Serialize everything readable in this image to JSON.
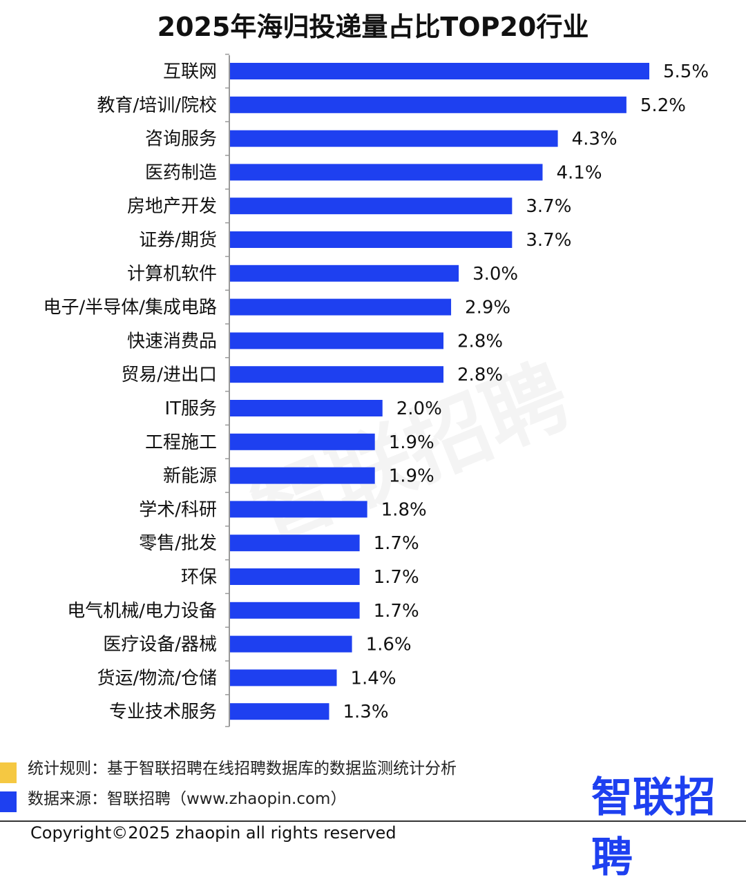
{
  "colors": {
    "bar": "#1e40f0",
    "axis": "#999999",
    "legend_yellow": "#f5c842",
    "legend_blue": "#1e40f0"
  },
  "chart_data": {
    "type": "bar",
    "orientation": "horizontal",
    "title": "2025年海归投递量占比TOP20行业",
    "categories": [
      "互联网",
      "教育/培训/院校",
      "咨询服务",
      "医药制造",
      "房地产开发",
      "证券/期货",
      "计算机软件",
      "电子/半导体/集成电路",
      "快速消费品",
      "贸易/进出口",
      "IT服务",
      "工程施工",
      "新能源",
      "学术/科研",
      "零售/批发",
      "环保",
      "电气机械/电力设备",
      "医疗设备/器械",
      "货运/物流/仓储",
      "专业技术服务"
    ],
    "values": [
      5.5,
      5.2,
      4.3,
      4.1,
      3.7,
      3.7,
      3.0,
      2.9,
      2.8,
      2.8,
      2.0,
      1.9,
      1.9,
      1.8,
      1.7,
      1.7,
      1.7,
      1.6,
      1.4,
      1.3
    ],
    "value_labels": [
      "5.5%",
      "5.2%",
      "4.3%",
      "4.1%",
      "3.7%",
      "3.7%",
      "3.0%",
      "2.9%",
      "2.8%",
      "2.8%",
      "2.0%",
      "1.9%",
      "1.9%",
      "1.8%",
      "1.7%",
      "1.7%",
      "1.7%",
      "1.6%",
      "1.4%",
      "1.3%"
    ],
    "xlim": [
      0,
      5.5
    ],
    "grid": false,
    "legend": "none"
  },
  "watermark": "智联招聘",
  "footer": {
    "rule": "统计规则：基于智联招聘在线招聘数据库的数据监测统计分析",
    "source": "数据来源：智联招聘（www.zhaopin.com）",
    "logo": "智联招聘",
    "copyright": "Copyright©2025 zhaopin all rights reserved"
  }
}
